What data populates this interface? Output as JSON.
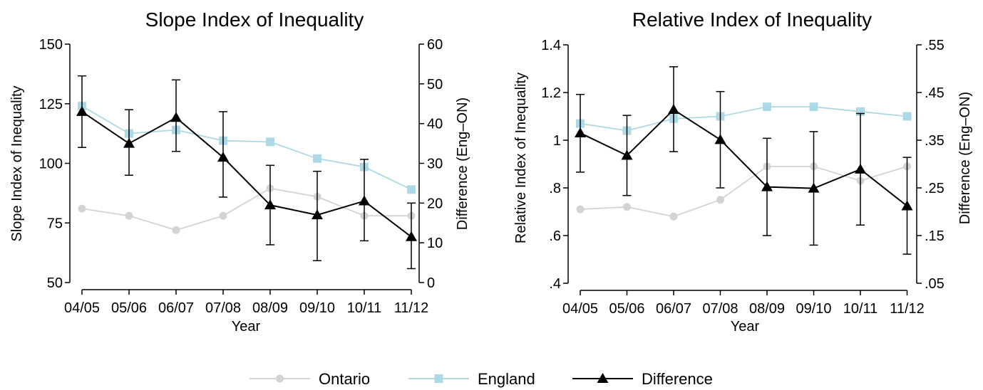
{
  "colors": {
    "ontario": "#d3d3d3",
    "england": "#add8e6",
    "difference": "#000000"
  },
  "legend": [
    {
      "label": "Ontario",
      "marker": "circle",
      "color": "#d3d3d3"
    },
    {
      "label": "England",
      "marker": "square",
      "color": "#add8e6"
    },
    {
      "label": "Difference",
      "marker": "triangle",
      "color": "#000000"
    }
  ],
  "legend_placement": "bottom-center",
  "chart_data": [
    {
      "type": "line",
      "title": "Slope Index of Inequality",
      "xlabel": "Year",
      "ylabel": "Slope Index of Inequality",
      "y2label": "Difference (Eng–ON)",
      "categories": [
        "04/05",
        "05/06",
        "06/07",
        "07/08",
        "08/09",
        "09/10",
        "10/11",
        "11/12"
      ],
      "ylim": [
        50,
        150
      ],
      "yticks": [
        50,
        75,
        100,
        125,
        150
      ],
      "yticklabels": [
        "50",
        "75",
        "100",
        "125",
        "150"
      ],
      "y2lim": [
        0,
        60
      ],
      "y2ticks": [
        0,
        10,
        20,
        30,
        40,
        50,
        60
      ],
      "y2ticklabels": [
        "0",
        "10",
        "20",
        "30",
        "40",
        "50",
        "60"
      ],
      "grid": false,
      "series": [
        {
          "name": "Ontario",
          "axis": "left",
          "marker": "circle",
          "values": [
            81,
            78,
            72,
            78,
            89.5,
            86,
            78,
            78
          ]
        },
        {
          "name": "England",
          "axis": "left",
          "marker": "square",
          "values": [
            124,
            112.5,
            114,
            109.5,
            109,
            102,
            98.5,
            89
          ]
        },
        {
          "name": "Difference",
          "axis": "right",
          "marker": "triangle",
          "values": [
            43,
            35,
            41.5,
            31.5,
            19.5,
            17,
            20.5,
            11.5
          ],
          "ci_low": [
            34,
            27,
            33,
            21.5,
            9.5,
            5.5,
            10.5,
            3.5
          ],
          "ci_high": [
            52,
            43.5,
            51,
            43,
            29.5,
            28,
            31,
            20
          ]
        }
      ]
    },
    {
      "type": "line",
      "title": "Relative Index of Inequality",
      "xlabel": "Year",
      "ylabel": "Relative Index of Inequality",
      "y2label": "Difference (Eng–ON)",
      "categories": [
        "04/05",
        "05/06",
        "06/07",
        "07/08",
        "08/09",
        "09/10",
        "10/11",
        "11/12"
      ],
      "ylim": [
        0.4,
        1.4
      ],
      "yticks": [
        0.4,
        0.6,
        0.8,
        1.0,
        1.2,
        1.4
      ],
      "yticklabels": [
        ".4",
        ".6",
        ".8",
        "1",
        "1.2",
        "1.4"
      ],
      "y2lim": [
        0.05,
        0.55
      ],
      "y2ticks": [
        0.05,
        0.15,
        0.25,
        0.35,
        0.45,
        0.55
      ],
      "y2ticklabels": [
        ".05",
        ".15",
        ".25",
        ".35",
        ".45",
        ".55"
      ],
      "grid": false,
      "series": [
        {
          "name": "Ontario",
          "axis": "left",
          "marker": "circle",
          "values": [
            0.71,
            0.72,
            0.68,
            0.75,
            0.89,
            0.89,
            0.83,
            0.89
          ]
        },
        {
          "name": "England",
          "axis": "left",
          "marker": "square",
          "values": [
            1.07,
            1.04,
            1.09,
            1.1,
            1.14,
            1.14,
            1.12,
            1.1
          ]
        },
        {
          "name": "Difference",
          "axis": "right",
          "marker": "triangle",
          "values": [
            0.365,
            0.318,
            0.414,
            0.351,
            0.252,
            0.249,
            0.289,
            0.212
          ],
          "ci_low": [
            0.283,
            0.234,
            0.326,
            0.25,
            0.15,
            0.13,
            0.172,
            0.111
          ],
          "ci_high": [
            0.446,
            0.402,
            0.504,
            0.452,
            0.354,
            0.368,
            0.406,
            0.314
          ]
        }
      ]
    }
  ]
}
